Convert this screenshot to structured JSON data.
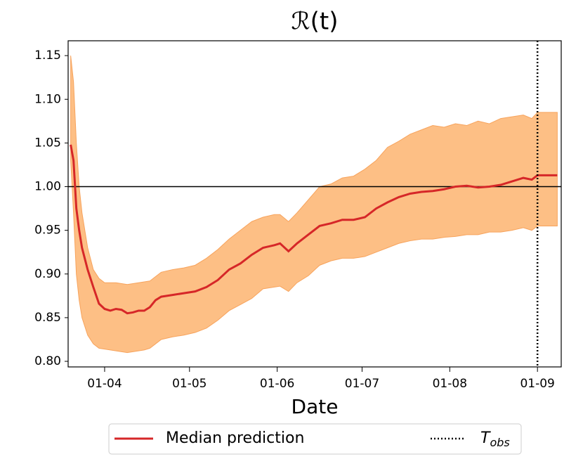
{
  "chart_data": {
    "type": "line",
    "title": "ℛ(t)",
    "xlabel": "Date",
    "x": [
      80,
      81,
      82,
      83,
      84,
      86,
      88,
      90,
      92,
      94,
      96,
      98,
      100,
      102,
      104,
      106,
      108,
      110,
      112,
      116,
      120,
      124,
      128,
      132,
      136,
      140,
      144,
      148,
      152,
      154,
      157,
      160,
      164,
      168,
      172,
      176,
      180,
      184,
      188,
      192,
      196,
      200,
      204,
      208,
      212,
      216,
      220,
      224,
      228,
      232,
      236,
      240,
      243,
      245,
      252
    ],
    "series": [
      {
        "name": "Median prediction",
        "color": "#d62728",
        "values": [
          1.048,
          1.03,
          0.975,
          0.95,
          0.93,
          0.905,
          0.885,
          0.866,
          0.86,
          0.858,
          0.86,
          0.859,
          0.855,
          0.856,
          0.858,
          0.858,
          0.862,
          0.87,
          0.874,
          0.876,
          0.878,
          0.88,
          0.885,
          0.893,
          0.905,
          0.912,
          0.922,
          0.93,
          0.933,
          0.935,
          0.926,
          0.935,
          0.945,
          0.955,
          0.958,
          0.962,
          0.962,
          0.965,
          0.975,
          0.982,
          0.988,
          0.992,
          0.994,
          0.995,
          0.997,
          1.0,
          1.001,
          0.999,
          1.0,
          1.002,
          1.006,
          1.01,
          1.008,
          1.013,
          1.013
        ]
      }
    ],
    "band": {
      "color": "#fdbf85",
      "edge_color": "#f7a35c",
      "upper": [
        1.15,
        1.12,
        1.05,
        1.0,
        0.97,
        0.93,
        0.905,
        0.895,
        0.89,
        0.89,
        0.89,
        0.889,
        0.888,
        0.889,
        0.89,
        0.891,
        0.892,
        0.897,
        0.902,
        0.905,
        0.907,
        0.91,
        0.918,
        0.928,
        0.94,
        0.95,
        0.96,
        0.965,
        0.968,
        0.968,
        0.96,
        0.97,
        0.985,
        1.0,
        1.003,
        1.01,
        1.012,
        1.02,
        1.03,
        1.045,
        1.052,
        1.06,
        1.065,
        1.07,
        1.068,
        1.072,
        1.07,
        1.075,
        1.072,
        1.078,
        1.08,
        1.082,
        1.078,
        1.085,
        1.085
      ],
      "lower": [
        1.03,
        0.97,
        0.9,
        0.87,
        0.85,
        0.83,
        0.82,
        0.815,
        0.814,
        0.813,
        0.812,
        0.811,
        0.81,
        0.811,
        0.812,
        0.813,
        0.815,
        0.82,
        0.825,
        0.828,
        0.83,
        0.833,
        0.838,
        0.847,
        0.858,
        0.865,
        0.872,
        0.883,
        0.885,
        0.886,
        0.88,
        0.89,
        0.898,
        0.91,
        0.915,
        0.918,
        0.918,
        0.92,
        0.925,
        0.93,
        0.935,
        0.938,
        0.94,
        0.94,
        0.942,
        0.943,
        0.945,
        0.945,
        0.948,
        0.948,
        0.95,
        0.953,
        0.95,
        0.955,
        0.955
      ]
    },
    "hline": {
      "value": 1,
      "color": "#000000"
    },
    "vline": {
      "x": 245,
      "label": "T",
      "label_sub": "obs",
      "color": "#000000"
    },
    "xlim": [
      79.1,
      253.4
    ],
    "xticks": [
      {
        "value": 92,
        "label": "01-04"
      },
      {
        "value": 122,
        "label": "01-05"
      },
      {
        "value": 153,
        "label": "01-06"
      },
      {
        "value": 183,
        "label": "01-07"
      },
      {
        "value": 214,
        "label": "01-08"
      },
      {
        "value": 245,
        "label": "01-09"
      }
    ],
    "ylim": [
      0.7936,
      1.167
    ],
    "yticks": [
      {
        "value": 0.8,
        "label": "0.80"
      },
      0.85,
      {
        "value": 0.9,
        "label": "0.90"
      },
      0.95,
      {
        "value": 1,
        "label": "1.00"
      },
      1.05,
      {
        "value": 1.1,
        "label": "1.10"
      },
      1.15
    ],
    "legend": "bottom-outside"
  }
}
